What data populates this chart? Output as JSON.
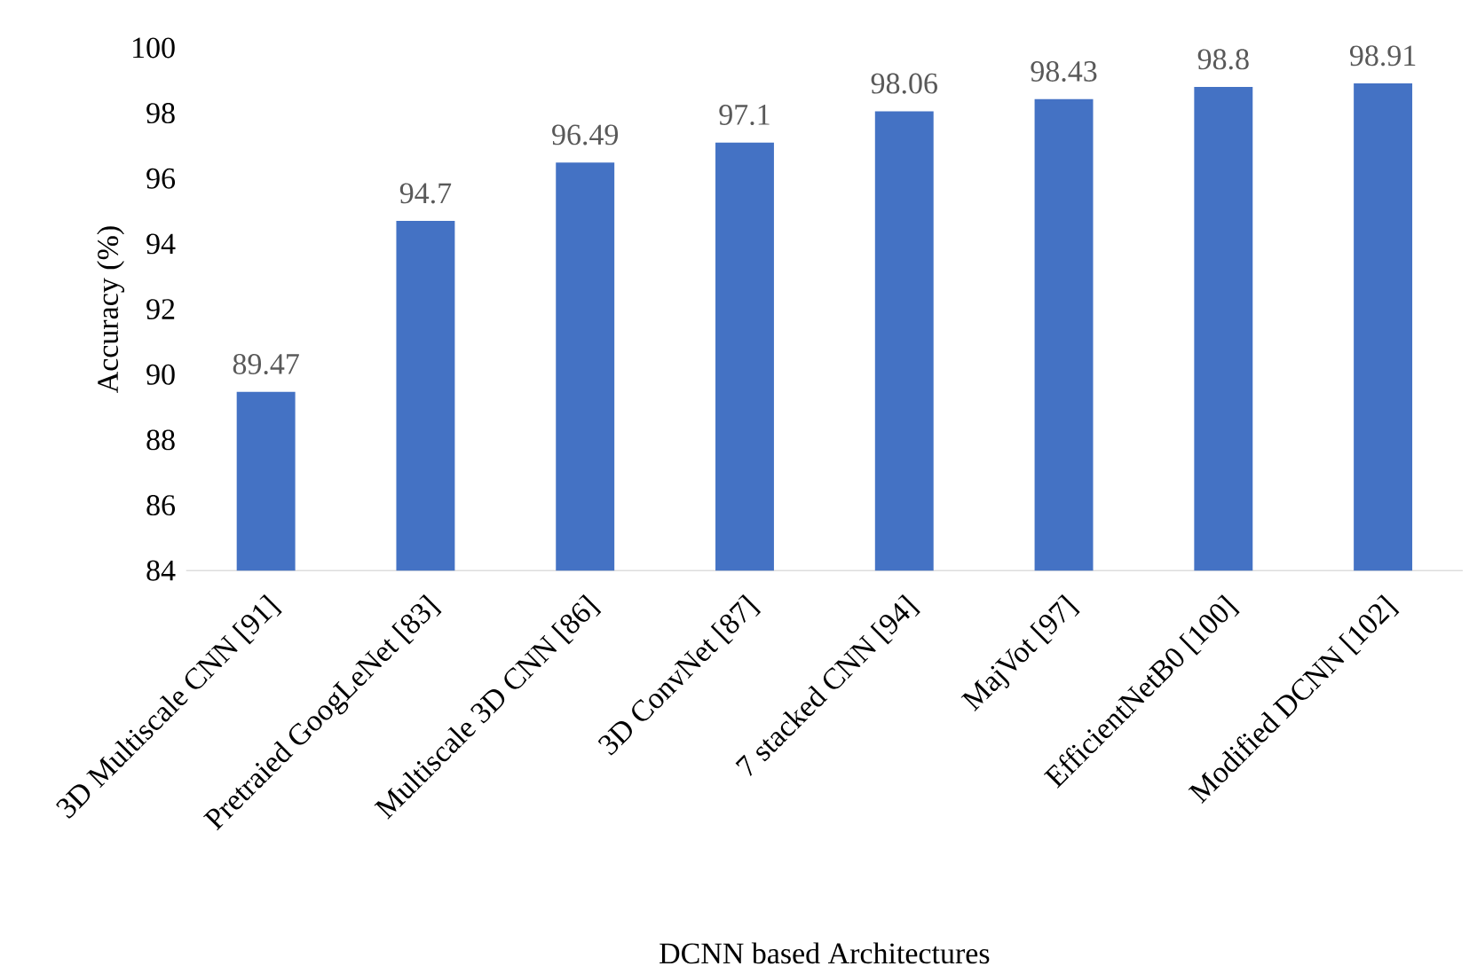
{
  "chart_data": {
    "type": "bar",
    "xlabel": "DCNN based Architectures",
    "ylabel": "Accuracy (%)",
    "categories": [
      "3D Multiscale CNN [91]",
      "Pretraied GoogLeNet [83]",
      "Multiscale 3D CNN [86]",
      "3D ConvNet [87]",
      "7 stacked  CNN [94]",
      "MajVot [97]",
      "EfficientNetB0 [100]",
      "Modified DCNN [102]"
    ],
    "values": [
      89.47,
      94.7,
      96.49,
      97.1,
      98.06,
      98.43,
      98.8,
      98.91
    ],
    "color": "#4472c4",
    "ylim": [
      84,
      100
    ],
    "yticks": [
      84,
      86,
      88,
      90,
      92,
      94,
      96,
      98,
      100
    ],
    "data_labels": true,
    "grid": false
  }
}
